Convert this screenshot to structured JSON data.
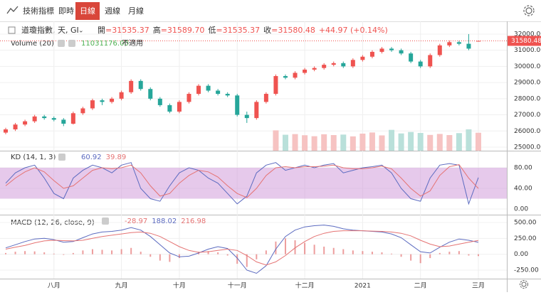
{
  "toolbar": {
    "items": [
      "技術指標",
      "即時",
      "日線",
      "週線",
      "月線"
    ],
    "active": 2
  },
  "chart_data": [
    {
      "type": "candlestick",
      "title": "道瓊指數, 天, GI",
      "legend_values": [
        "開=31535.37",
        "高=31589.70",
        "低=31535.37",
        "收=31580.48",
        "+44.97 (+0.14%)"
      ],
      "volume_title": "Volume (20)",
      "volume_label": "11031176.00",
      "volume_note": "不適用",
      "categories": [
        null,
        null,
        null,
        null,
        null,
        "八月",
        null,
        null,
        null,
        null,
        null,
        null,
        "九月",
        null,
        null,
        null,
        null,
        null,
        "十月",
        null,
        null,
        null,
        null,
        null,
        "十一月",
        null,
        null,
        null,
        null,
        null,
        null,
        "十二月",
        null,
        null,
        null,
        null,
        null,
        "2021",
        null,
        null,
        null,
        null,
        null,
        "二月",
        null,
        null,
        null,
        null,
        null,
        "三月"
      ],
      "open": [
        25900,
        26100,
        26400,
        26600,
        26900,
        26800,
        26700,
        26450,
        27100,
        27400,
        27900,
        27800,
        28000,
        28400,
        29100,
        28600,
        28000,
        27600,
        27200,
        27800,
        28300,
        28800,
        28500,
        28300,
        28200,
        27000,
        26800,
        27800,
        28300,
        29400,
        29300,
        29600,
        29800,
        29900,
        30100,
        30200,
        30000,
        30400,
        30600,
        30900,
        31100,
        31000,
        30800,
        30300,
        30000,
        30700,
        31300,
        31500,
        31400,
        31535.37
      ],
      "high": [
        26200,
        26500,
        26700,
        27000,
        27000,
        26900,
        26800,
        27200,
        27500,
        28000,
        28000,
        28100,
        28500,
        29200,
        29200,
        28700,
        28100,
        27700,
        27900,
        28400,
        28900,
        28900,
        28600,
        28400,
        28300,
        27200,
        27900,
        28400,
        29500,
        29500,
        29700,
        29900,
        30000,
        30200,
        30300,
        30300,
        30500,
        30700,
        31000,
        31200,
        31200,
        31100,
        30900,
        30400,
        30800,
        31400,
        31600,
        31600,
        32000,
        31589.7
      ],
      "low": [
        25800,
        26000,
        26300,
        26500,
        26700,
        26600,
        26300,
        26400,
        27000,
        27300,
        27600,
        27700,
        27900,
        28300,
        28500,
        27900,
        27500,
        27100,
        27100,
        27700,
        28200,
        28400,
        28200,
        28100,
        26900,
        26500,
        26700,
        27700,
        28200,
        29200,
        29200,
        29500,
        29700,
        29800,
        30000,
        29900,
        29900,
        30300,
        30500,
        30800,
        30900,
        30700,
        30200,
        29900,
        29900,
        30600,
        31200,
        31300,
        31000,
        31535.37
      ],
      "close": [
        26100,
        26400,
        26600,
        26900,
        26800,
        26700,
        26450,
        27100,
        27400,
        27900,
        27800,
        28000,
        28400,
        29100,
        28600,
        28000,
        27600,
        27200,
        27800,
        28300,
        28800,
        28500,
        28300,
        28200,
        27000,
        26800,
        27800,
        28300,
        29400,
        29300,
        29600,
        29800,
        29900,
        30100,
        30200,
        30000,
        30400,
        30600,
        30900,
        31100,
        31000,
        30800,
        30300,
        30000,
        30700,
        31300,
        31500,
        31400,
        31100,
        31580.48
      ],
      "volume": [
        null,
        null,
        null,
        null,
        null,
        null,
        null,
        null,
        null,
        null,
        null,
        null,
        null,
        null,
        null,
        null,
        null,
        null,
        null,
        null,
        null,
        null,
        null,
        null,
        null,
        null,
        null,
        null,
        12500000,
        9800000,
        10200000,
        9500000,
        8900000,
        10100000,
        9600000,
        9900000,
        8800000,
        10500000,
        11200000,
        9400000,
        12800000,
        10600000,
        11500000,
        10900000,
        9700000,
        10300000,
        9600000,
        10800000,
        13100000,
        11031176
      ],
      "up_color": "#ef5350",
      "down_color": "#26a69a",
      "volume_colors": [
        "#f6c3c2",
        "#b9e0da"
      ],
      "ylim": [
        24780,
        32790
      ],
      "yticks": [
        {
          "value": 25000,
          "label": "25000.00"
        },
        {
          "value": 26000,
          "label": "26000.00"
        },
        {
          "value": 27000,
          "label": "27000.00"
        },
        {
          "value": 28000,
          "label": "28000.00"
        },
        {
          "value": 29000,
          "label": "29000.00"
        },
        {
          "value": 30000,
          "label": "30000.00"
        },
        {
          "value": 31000,
          "label": "31000.00"
        },
        {
          "value": 32000,
          "label": "32000.00"
        }
      ],
      "grid": true
    },
    {
      "type": "kd",
      "title": "KD (14, 1, 3)",
      "band": [
        20,
        80
      ],
      "band_color": "#ce93d8",
      "series": [
        {
          "color": "#5c6bc0",
          "values": [
            50,
            70,
            80,
            85,
            60,
            30,
            20,
            60,
            75,
            85,
            80,
            70,
            85,
            90,
            40,
            20,
            15,
            45,
            70,
            80,
            75,
            60,
            50,
            30,
            10,
            25,
            70,
            85,
            90,
            75,
            80,
            85,
            80,
            85,
            88,
            70,
            75,
            80,
            82,
            85,
            70,
            40,
            20,
            15,
            60,
            85,
            88,
            85,
            10,
            60.92
          ]
        },
        {
          "color": "#e57373",
          "values": [
            45,
            60,
            72,
            80,
            72,
            55,
            40,
            45,
            60,
            75,
            80,
            78,
            80,
            85,
            70,
            45,
            25,
            30,
            50,
            65,
            75,
            72,
            62,
            45,
            30,
            22,
            40,
            65,
            80,
            82,
            80,
            82,
            82,
            83,
            85,
            80,
            78,
            78,
            80,
            83,
            78,
            60,
            40,
            25,
            35,
            65,
            82,
            86,
            60,
            39.89
          ]
        }
      ],
      "ylim": [
        -11,
        113
      ],
      "yticks": [
        {
          "value": 0,
          "label": "0.00"
        },
        {
          "value": 40,
          "label": "40.00"
        },
        {
          "value": 80,
          "label": "80.00"
        }
      ]
    },
    {
      "type": "macd",
      "title": "MACD (12, 26, close, 9)",
      "series": [
        {
          "kind": "histogram",
          "color": "#e57373",
          "values": [
            20,
            40,
            50,
            45,
            30,
            10,
            -10,
            20,
            60,
            80,
            70,
            60,
            80,
            100,
            40,
            -40,
            -100,
            -120,
            -60,
            0,
            40,
            50,
            30,
            -20,
            -150,
            -200,
            -80,
            60,
            200,
            250,
            220,
            180,
            150,
            120,
            100,
            80,
            60,
            50,
            40,
            30,
            10,
            -40,
            -100,
            -140,
            -60,
            20,
            40,
            50,
            -20,
            -28.97
          ]
        },
        {
          "kind": "line",
          "color": "#5c6bc0",
          "values": [
            100,
            150,
            200,
            240,
            250,
            230,
            190,
            200,
            260,
            320,
            350,
            360,
            380,
            420,
            380,
            280,
            150,
            20,
            -40,
            -30,
            20,
            80,
            120,
            90,
            -60,
            -250,
            -300,
            -180,
            80,
            280,
            380,
            430,
            450,
            460,
            440,
            400,
            380,
            370,
            360,
            350,
            320,
            260,
            150,
            40,
            20,
            110,
            190,
            240,
            220,
            188.02
          ]
        },
        {
          "kind": "line",
          "color": "#e57373",
          "values": [
            80,
            110,
            140,
            180,
            210,
            220,
            215,
            210,
            220,
            250,
            280,
            300,
            320,
            340,
            350,
            330,
            280,
            200,
            120,
            60,
            30,
            40,
            60,
            80,
            60,
            -20,
            -120,
            -170,
            -120,
            -20,
            100,
            200,
            280,
            330,
            360,
            370,
            370,
            370,
            365,
            360,
            350,
            330,
            290,
            220,
            160,
            120,
            130,
            160,
            190,
            216.98
          ]
        }
      ],
      "ylim": [
        -384,
        623
      ],
      "yticks": [
        {
          "value": -250,
          "label": "-250.00"
        },
        {
          "value": 0,
          "label": "0.00"
        },
        {
          "value": 250,
          "label": "250.00"
        },
        {
          "value": 500,
          "label": "500.00"
        }
      ]
    }
  ]
}
